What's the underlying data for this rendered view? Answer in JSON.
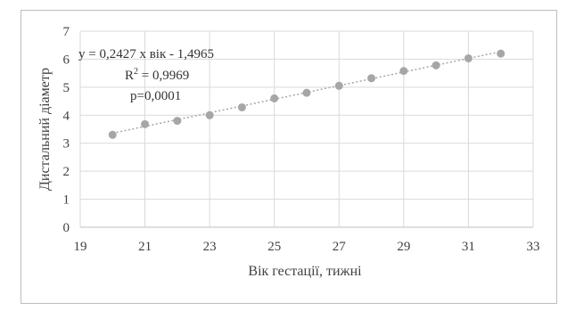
{
  "chart_data": {
    "type": "scatter",
    "title": "",
    "xlabel": "Вік гестації, тижні",
    "ylabel": "Дистальний діаметр",
    "xlim": [
      19,
      33
    ],
    "ylim": [
      0,
      7
    ],
    "x_ticks": [
      19,
      21,
      23,
      25,
      27,
      29,
      31,
      33
    ],
    "y_ticks": [
      0,
      1,
      2,
      3,
      4,
      5,
      6,
      7
    ],
    "grid": true,
    "legend": "none",
    "marker_color": "#a6a6a6",
    "trendline_color": "#a6a6a6",
    "points": {
      "x": [
        20,
        21,
        22,
        23,
        24,
        25,
        26,
        27,
        28,
        29,
        30,
        31,
        32
      ],
      "y": [
        3.3,
        3.68,
        3.8,
        4.0,
        4.28,
        4.6,
        4.8,
        5.05,
        5.32,
        5.58,
        5.78,
        6.03,
        6.2
      ]
    },
    "trendline": {
      "slope": 0.2427,
      "intercept": -1.4965,
      "x_range": [
        20,
        32
      ]
    },
    "annotations": {
      "equation": "y = 0,2427 x вік - 1,4965",
      "r_squared_base": "R",
      "r_squared_exp": "2",
      "r_squared_value": " = 0,9969",
      "p_value": "p=0,0001"
    }
  }
}
